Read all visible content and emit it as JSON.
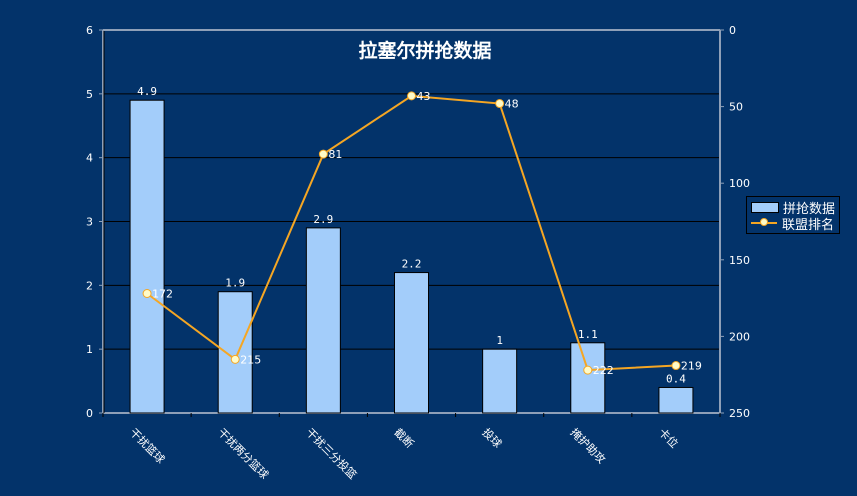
{
  "chart_data": {
    "type": "bar+line",
    "title": "拉塞尔拼抢数据",
    "categories": [
      "干扰篮球",
      "干扰两分篮球",
      "干扰三分投篮",
      "截断",
      "投球",
      "掩护助攻",
      "卡位"
    ],
    "series": [
      {
        "name": "拼抢数据",
        "type": "bar",
        "axis": "left",
        "values": [
          4.9,
          1.9,
          2.9,
          2.2,
          1,
          1.1,
          0.4
        ],
        "labels": [
          "4.9",
          "1.9",
          "2.9",
          "2.2",
          "1",
          "1.1",
          "0.4"
        ],
        "color": "#a3cdfa"
      },
      {
        "name": "联盟排名",
        "type": "line",
        "axis": "right",
        "values": [
          172,
          215,
          81,
          43,
          48,
          222,
          219
        ],
        "labels": [
          "172",
          "215",
          "81",
          "43",
          "48",
          "222",
          "219"
        ],
        "color": "#f5a623"
      }
    ],
    "left_axis": {
      "min": 0,
      "max": 6,
      "ticks": [
        "0",
        "1",
        "2",
        "3",
        "4",
        "5",
        "6"
      ]
    },
    "right_axis": {
      "min": 0,
      "max": 250,
      "reversed": true,
      "ticks": [
        "0",
        "50",
        "100",
        "150",
        "200",
        "250"
      ]
    },
    "xlabel": "",
    "ylabel": "",
    "grid": true,
    "legend_position": "right",
    "background": "#03336a"
  },
  "legend": {
    "bar_label": "拼抢数据",
    "line_label": "联盟排名"
  }
}
